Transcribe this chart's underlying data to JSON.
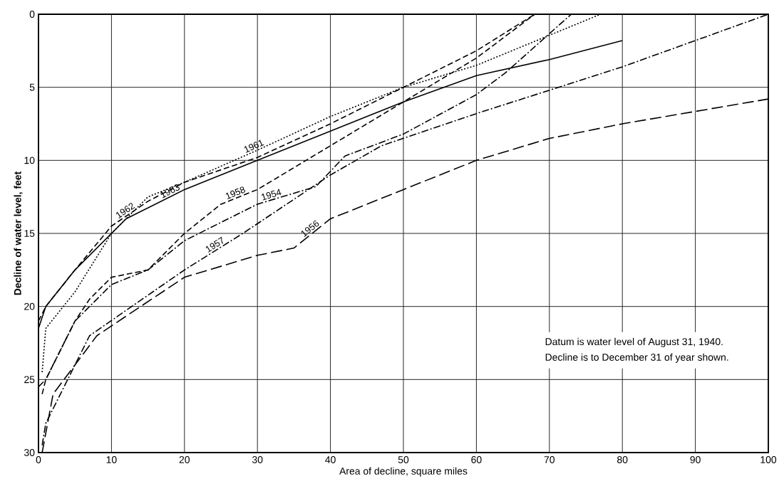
{
  "chart_data": {
    "type": "line",
    "xlabel": "Area of decline, square miles",
    "ylabel": "Decline of water level, feet",
    "xlim": [
      0,
      100
    ],
    "ylim": [
      30,
      0
    ],
    "xticks": [
      0,
      10,
      20,
      30,
      40,
      50,
      60,
      70,
      80,
      90,
      100
    ],
    "yticks": [
      0,
      5,
      10,
      15,
      20,
      25,
      30
    ],
    "grid": true,
    "legend": false,
    "marker": "none",
    "annotations": [
      "Datum is water level of August 31, 1940.",
      "Decline is to December 31 of year shown."
    ],
    "series": [
      {
        "name": "1954",
        "color": "#000000",
        "line_style": "dashdot",
        "x": [
          0,
          1,
          5,
          10,
          15,
          20,
          30,
          38,
          42,
          50,
          60,
          64,
          73
        ],
        "values": [
          25.5,
          25,
          21,
          18.5,
          17.5,
          15.5,
          13,
          11.8,
          9.7,
          8.2,
          5.5,
          4,
          0
        ]
      },
      {
        "name": "1956",
        "color": "#000000",
        "line_style": "longdashed",
        "x": [
          0.5,
          2,
          8,
          20,
          30,
          35,
          40,
          50,
          60,
          70,
          80,
          100
        ],
        "values": [
          30,
          26,
          22,
          18,
          16.5,
          16,
          14,
          12,
          10,
          8.5,
          7.5,
          5.8
        ]
      },
      {
        "name": "1957",
        "color": "#000000",
        "line_style": "dashdot",
        "x": [
          0.5,
          1,
          7,
          20,
          28,
          40,
          47,
          60,
          80,
          100
        ],
        "values": [
          29.5,
          28,
          22,
          17.5,
          15,
          11,
          9,
          6.8,
          3.6,
          0
        ]
      },
      {
        "name": "1958",
        "color": "#000000",
        "line_style": "dashed",
        "x": [
          0.5,
          1,
          5,
          7,
          10,
          15,
          20,
          25,
          30,
          40,
          50,
          60,
          68
        ],
        "values": [
          26,
          25,
          21,
          19.5,
          18,
          17.5,
          15,
          13,
          12,
          9,
          6,
          3,
          0
        ]
      },
      {
        "name": "1961",
        "color": "#000000",
        "line_style": "dotted",
        "x": [
          0.5,
          1,
          5,
          10,
          15,
          20,
          30,
          40,
          50,
          60,
          77
        ],
        "values": [
          24.5,
          21.5,
          19,
          15,
          12.5,
          11.5,
          9.3,
          7,
          5,
          3.5,
          0
        ]
      },
      {
        "name": "1962",
        "color": "#000000",
        "line_style": "dashed",
        "x": [
          0,
          1,
          5,
          10,
          15,
          20,
          30,
          40,
          50,
          60,
          68
        ],
        "values": [
          21,
          20,
          17.5,
          14.5,
          12.8,
          11.5,
          9.8,
          7.5,
          5,
          2.5,
          0
        ]
      },
      {
        "name": "1963",
        "color": "#000000",
        "line_style": "solid",
        "x": [
          0,
          1,
          5,
          12,
          20,
          30,
          40,
          50,
          60,
          70,
          80
        ],
        "values": [
          21.5,
          20,
          17.5,
          14,
          12,
          10,
          8,
          6,
          4.2,
          3.1,
          1.8
        ]
      }
    ]
  }
}
